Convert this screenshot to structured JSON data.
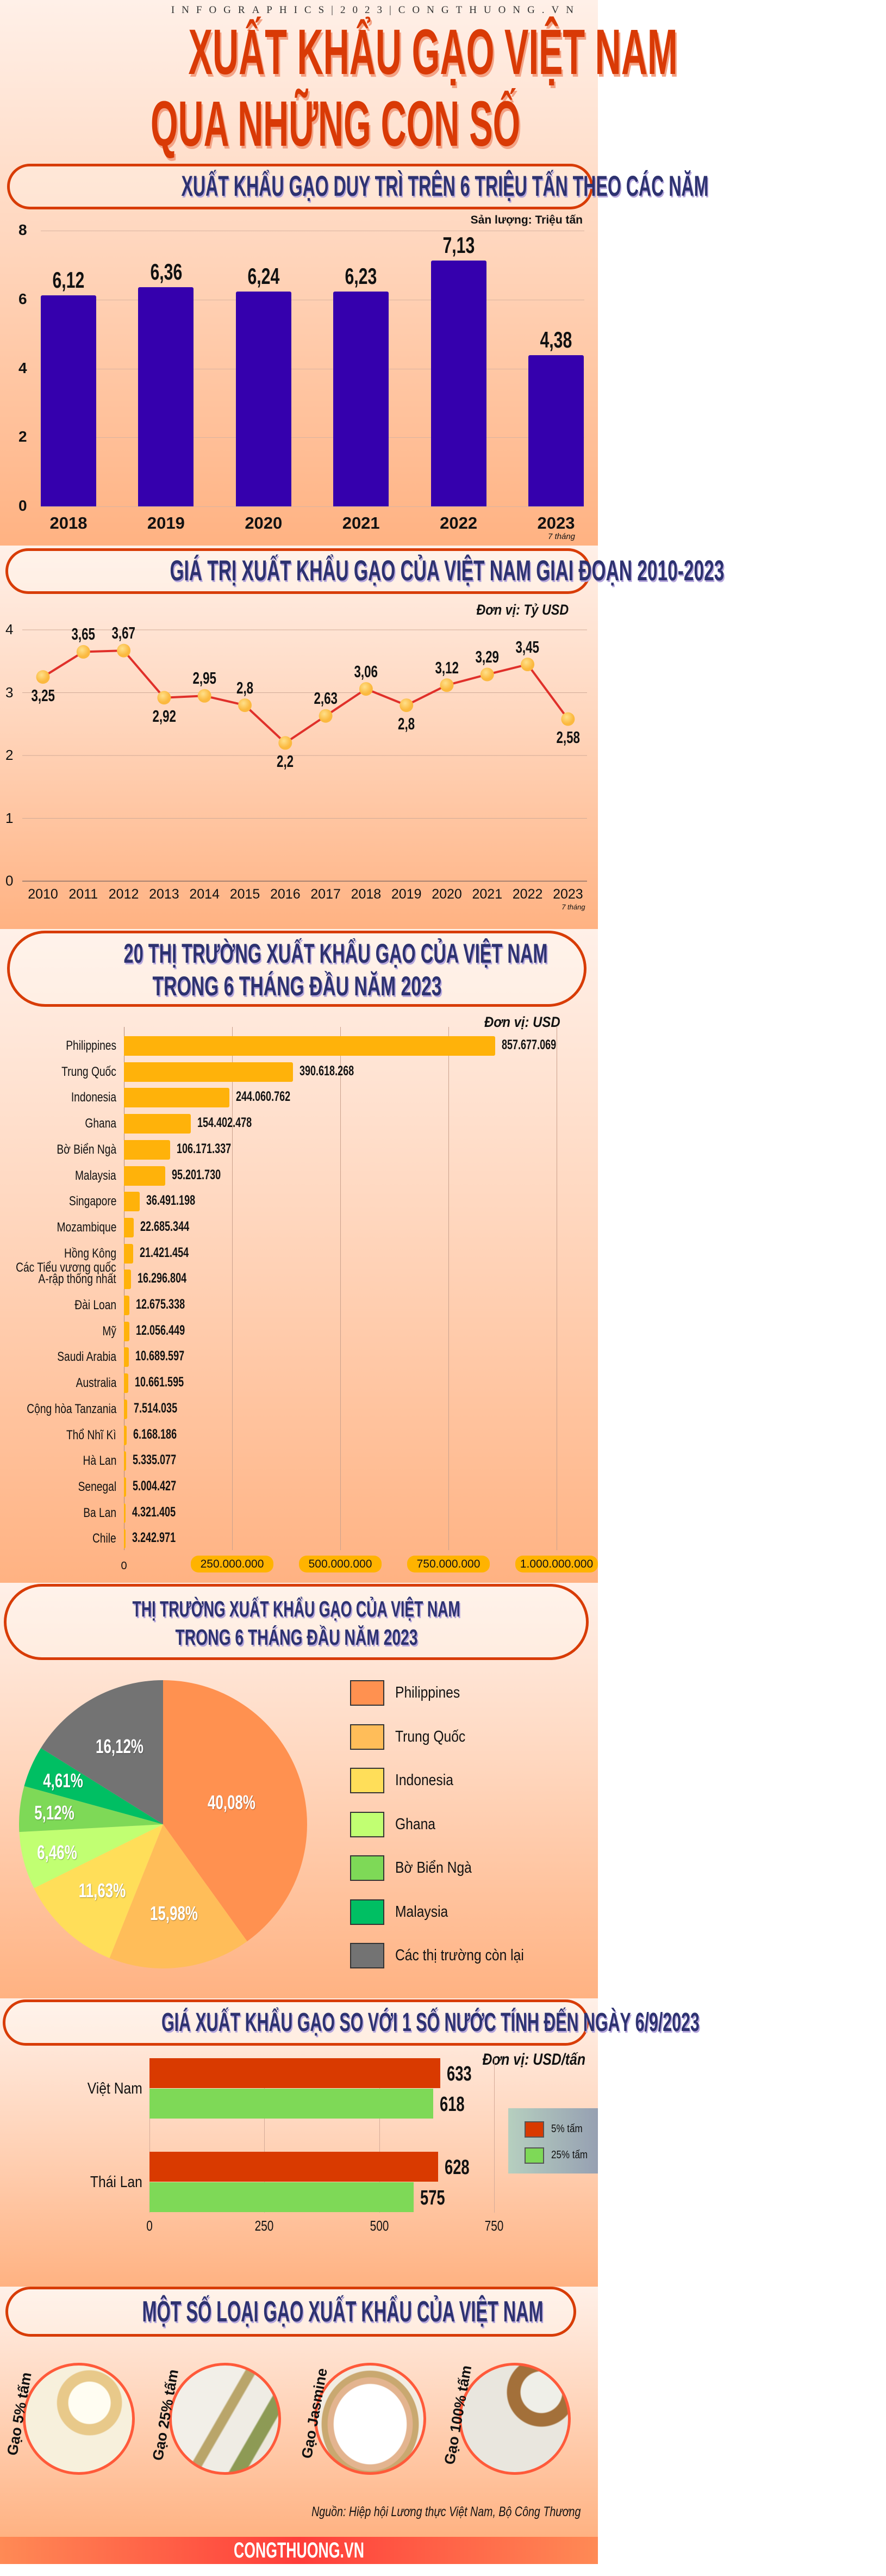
{
  "header": {
    "tagline": "INFOGRAPHICS|2023|CONGTHUONG.VN",
    "title_line1": "XUẤT KHẨU GẠO VIỆT NAM",
    "title_line2": "QUA NHỮNG CON SỐ"
  },
  "colors": {
    "title": "#d93a06",
    "section_title": "#2d3270",
    "pill_border": "#d83c06"
  },
  "chart_data": [
    {
      "type": "bar",
      "title": "XUẤT KHẨU GẠO DUY TRÌ TRÊN 6 TRIỆU TẤN THEO CÁC NĂM",
      "unit_label": "Sản lượng: Triệu tấn",
      "categories": [
        "2018",
        "2019",
        "2020",
        "2021",
        "2022",
        "2023"
      ],
      "category_notes": [
        "",
        "",
        "",
        "",
        "",
        "7 tháng"
      ],
      "values": [
        6.12,
        6.36,
        6.24,
        6.23,
        7.13,
        4.38
      ],
      "ylim": [
        0,
        8
      ],
      "yticks": [
        0,
        2,
        4,
        6,
        8
      ],
      "grid": true,
      "color": "#3500ad"
    },
    {
      "type": "line",
      "title": "GIÁ TRỊ XUẤT KHẨU GẠO CỦA VIỆT NAM GIAI ĐOẠN 2010-2023",
      "unit_label": "Đơn vị: Tỷ USD",
      "categories": [
        "2010",
        "2011",
        "2012",
        "2013",
        "2014",
        "2015",
        "2016",
        "2017",
        "2018",
        "2019",
        "2020",
        "2021",
        "2022",
        "2023"
      ],
      "category_notes": [
        "",
        "",
        "",
        "",
        "",
        "",
        "",
        "",
        "",
        "",
        "",
        "",
        "",
        "7 tháng"
      ],
      "values": [
        3.25,
        3.65,
        3.67,
        2.92,
        2.95,
        2.8,
        2.2,
        2.63,
        3.06,
        2.8,
        3.12,
        3.29,
        3.45,
        2.58
      ],
      "ylim": [
        0,
        4
      ],
      "yticks": [
        0,
        1,
        2,
        3,
        4
      ],
      "grid": true,
      "line_color": "#e0302a",
      "marker_color": "#fbb93f"
    },
    {
      "type": "bar",
      "orientation": "horizontal",
      "title_lines": [
        "20 THỊ TRƯỜNG XUẤT KHẨU GẠO CỦA VIỆT NAM",
        "TRONG 6 THÁNG ĐẦU NĂM 2023"
      ],
      "unit_label": "Đơn vị: USD",
      "categories": [
        "Philippines",
        "Trung Quốc",
        "Indonesia",
        "Ghana",
        "Bờ Biển Ngà",
        "Malaysia",
        "Singapore",
        "Mozambique",
        "Hồng Kông",
        "Các Tiểu vương quốc\nA-rập thống nhất",
        "Đài Loan",
        "Mỹ",
        "Saudi Arabia",
        "Australia",
        "Cộng hòa Tanzania",
        "Thổ Nhĩ Kì",
        "Hà Lan",
        "Senegal",
        "Ba Lan",
        "Chile"
      ],
      "values": [
        857677069,
        390618268,
        244060762,
        154402478,
        106171337,
        95201730,
        36491198,
        22685344,
        21421454,
        16296804,
        12675338,
        12056449,
        10689597,
        10661595,
        7514035,
        6168186,
        5335077,
        5004427,
        4321405,
        3242971
      ],
      "xlim": [
        0,
        1000000000
      ],
      "xticks": [
        0,
        250000000,
        500000000,
        750000000,
        1000000000
      ],
      "grid": true,
      "color": "#ffb20a"
    },
    {
      "type": "pie",
      "title_lines": [
        "THỊ TRƯỜNG XUẤT KHẨU GẠO CỦA VIỆT NAM",
        "TRONG 6 THÁNG ĐẦU NĂM 2023"
      ],
      "categories": [
        "Philippines",
        "Trung Quốc",
        "Indonesia",
        "Ghana",
        "Bờ Biển Ngà",
        "Malaysia",
        "Các thị trường còn lại"
      ],
      "values": [
        40.08,
        15.98,
        11.63,
        6.46,
        5.12,
        4.61,
        16.12
      ],
      "colors": [
        "#ff9150",
        "#ffbd59",
        "#ffde59",
        "#c1ff72",
        "#7ed957",
        "#00bf63",
        "#737373"
      ],
      "legend": "right"
    },
    {
      "type": "bar",
      "orientation": "horizontal",
      "title": "GIÁ XUẤT KHẨU GẠO SO VỚI 1 SỐ NƯỚC TÍNH ĐẾN NGÀY 6/9/2023",
      "unit_label": "Đơn vị: USD/tấn",
      "categories": [
        "Việt Nam",
        "Thái Lan"
      ],
      "series": [
        {
          "name": "5% tấm",
          "values": [
            633,
            628
          ],
          "color": "#d93a00"
        },
        {
          "name": "25% tấm",
          "values": [
            618,
            575
          ],
          "color": "#7ed957"
        }
      ],
      "xlim": [
        0,
        750
      ],
      "xticks": [
        0,
        250,
        500,
        750
      ],
      "grid": true,
      "legend": "right"
    }
  ],
  "rice": {
    "title": "MỘT SỐ LOẠI GẠO XUẤT KHẨU CỦA VIỆT NAM",
    "items": [
      {
        "label": "Gạo 5% tấm"
      },
      {
        "label": "Gạo 25% tấm"
      },
      {
        "label": "Gạo Jasmine"
      },
      {
        "label": "Gạo 100% tấm"
      }
    ],
    "source": "Nguồn: Hiệp hội Lương thực Việt Nam, Bộ Công Thương"
  },
  "footer": {
    "brand": "CONGTHUONG.VN"
  }
}
